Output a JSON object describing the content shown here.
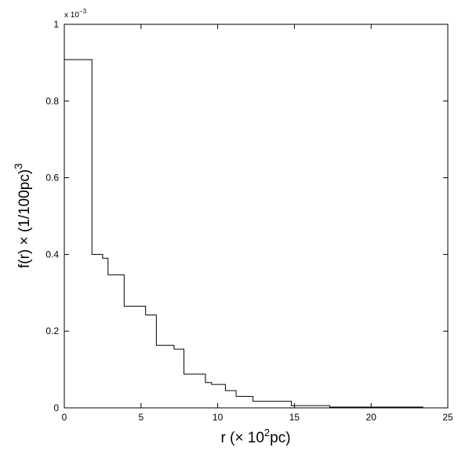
{
  "chart_data": {
    "type": "line",
    "style": "step",
    "title": "",
    "xlabel": {
      "base": "r (× 10",
      "sup": "2",
      "tail": "pc)"
    },
    "ylabel": {
      "base": "f(r) × (1/100pc)",
      "sup": "3"
    },
    "y_exponent": {
      "base": "x 10",
      "sup": "−3"
    },
    "xlim": [
      0,
      25
    ],
    "ylim": [
      0,
      1
    ],
    "xticks": [
      0,
      5,
      10,
      15,
      20,
      25
    ],
    "xtick_labels": [
      "0",
      "5",
      "10",
      "15",
      "20",
      "25"
    ],
    "yticks": [
      0,
      0.2,
      0.4,
      0.6,
      0.8,
      1
    ],
    "ytick_labels": [
      "0",
      "0.2",
      "0.4",
      "0.6",
      "0.8",
      "1"
    ],
    "grid": false,
    "legend": "none",
    "line_color": "#000000",
    "series": [
      {
        "bin_edges": [
          0,
          1.8,
          2.5,
          2.85,
          3.9,
          5.3,
          6.0,
          7.15,
          7.8,
          9.2,
          9.6,
          10.5,
          11.2,
          12.3,
          14.8,
          17.3,
          23.4
        ],
        "values": [
          0.908,
          0.4,
          0.39,
          0.347,
          0.265,
          0.242,
          0.163,
          0.153,
          0.088,
          0.066,
          0.061,
          0.045,
          0.03,
          0.017,
          0.006,
          0.002
        ]
      }
    ]
  }
}
